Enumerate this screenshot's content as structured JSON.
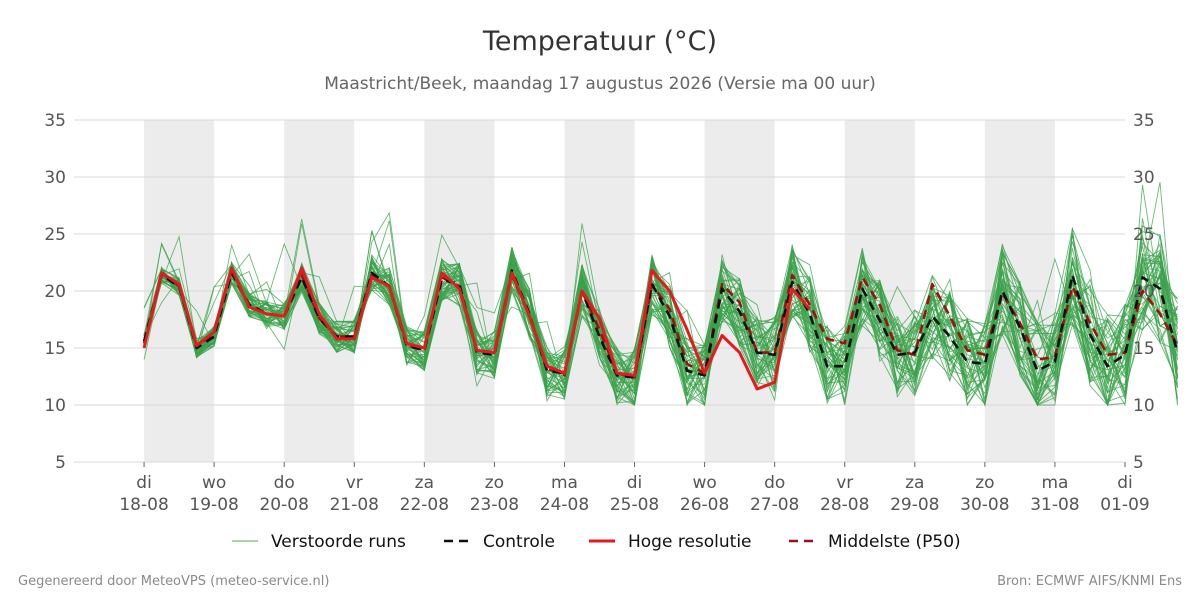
{
  "chart_data": {
    "type": "line",
    "title": "Temperatuur (°C)",
    "subtitle": "Maastricht/Beek, maandag 17 augustus 2026 (Versie ma 00 uur)",
    "ylim": [
      5,
      35
    ],
    "yticks": [
      5,
      10,
      15,
      20,
      25,
      30,
      35
    ],
    "x_start": "2026-08-17 00:00",
    "x_end": "2026-09-01 00:00",
    "x_step_hours": 6,
    "xtick_labels": [
      {
        "day": "di",
        "date": "18-08"
      },
      {
        "day": "wo",
        "date": "19-08"
      },
      {
        "day": "do",
        "date": "20-08"
      },
      {
        "day": "vr",
        "date": "21-08"
      },
      {
        "day": "za",
        "date": "22-08"
      },
      {
        "day": "zo",
        "date": "23-08"
      },
      {
        "day": "ma",
        "date": "24-08"
      },
      {
        "day": "di",
        "date": "25-08"
      },
      {
        "day": "wo",
        "date": "26-08"
      },
      {
        "day": "do",
        "date": "27-08"
      },
      {
        "day": "vr",
        "date": "28-08"
      },
      {
        "day": "za",
        "date": "29-08"
      },
      {
        "day": "zo",
        "date": "30-08"
      },
      {
        "day": "ma",
        "date": "31-08"
      },
      {
        "day": "di",
        "date": "01-09"
      }
    ],
    "shaded_days": [
      "18-08",
      "20-08",
      "22-08",
      "24-08",
      "26-08",
      "28-08",
      "30-08"
    ],
    "grid": true,
    "legend_position": "bottom-center",
    "series": [
      {
        "name": "Controle",
        "color": "#111111",
        "style": "dashed",
        "values": [
          15.6,
          21.4,
          20.4,
          15.0,
          16.0,
          21.6,
          18.8,
          18.0,
          17.8,
          21.2,
          17.6,
          16.0,
          16.0,
          21.6,
          20.4,
          15.2,
          14.8,
          21.0,
          20.6,
          14.6,
          14.4,
          21.8,
          18.0,
          13.0,
          12.8,
          20.0,
          16.0,
          12.6,
          12.4,
          20.6,
          17.8,
          13.0,
          12.6,
          20.2,
          18.2,
          14.6,
          14.4,
          20.8,
          18.0,
          13.4,
          13.4,
          20.2,
          17.4,
          14.4,
          14.6,
          17.8,
          16.0,
          13.8,
          13.6,
          20.0,
          16.8,
          13.0,
          13.8,
          21.4,
          16.2,
          13.4,
          14.4,
          21.2,
          20.2,
          14.6
        ]
      },
      {
        "name": "Hoge resolutie",
        "color": "#e8191e",
        "style": "solid",
        "values": [
          15.0,
          21.6,
          20.6,
          15.2,
          16.4,
          22.0,
          18.6,
          18.0,
          17.8,
          22.0,
          18.0,
          15.8,
          15.8,
          21.2,
          20.4,
          15.4,
          15.0,
          21.6,
          20.2,
          14.8,
          14.6,
          21.6,
          17.8,
          13.4,
          12.8,
          20.0,
          17.6,
          12.8,
          12.6,
          21.8,
          20.0,
          16.6,
          12.8,
          16.1,
          14.6,
          11.4,
          12.0,
          20.2,
          18.4
        ]
      },
      {
        "name": "Middelste (P50)",
        "color": "#a01010",
        "style": "dashed",
        "values": [
          15.4,
          21.6,
          20.4,
          15.2,
          16.2,
          21.6,
          18.8,
          18.0,
          17.8,
          21.4,
          17.6,
          16.0,
          16.0,
          21.4,
          20.4,
          15.2,
          14.8,
          21.2,
          20.4,
          14.8,
          14.6,
          21.4,
          17.8,
          13.2,
          12.6,
          20.0,
          16.6,
          12.8,
          12.4,
          20.6,
          18.4,
          13.6,
          12.8,
          20.6,
          19.0,
          14.6,
          14.6,
          21.4,
          18.8,
          15.8,
          15.4,
          21.2,
          18.8,
          14.8,
          14.4,
          20.6,
          17.8,
          14.8,
          14.4,
          19.8,
          17.2,
          14.0,
          14.2,
          20.4,
          17.2,
          14.4,
          14.6,
          20.0,
          18.0,
          15.2
        ]
      }
    ],
    "legend": [
      {
        "label": "Verstoorde runs",
        "color": "#4caf5a",
        "style": "thin"
      },
      {
        "label": "Controle",
        "color": "#111111",
        "style": "dashed"
      },
      {
        "label": "Hoge resolutie",
        "color": "#e8191e",
        "style": "solid"
      },
      {
        "label": "Middelste (P50)",
        "color": "#a01010",
        "style": "dashed"
      }
    ],
    "ensemble_member_count": 50,
    "ensemble_color": "#3aa14a"
  },
  "footer": {
    "left": "Gegenereerd door MeteoVPS (meteo-service.nl)",
    "right": "Bron: ECMWF AIFS/KNMI Ens"
  }
}
